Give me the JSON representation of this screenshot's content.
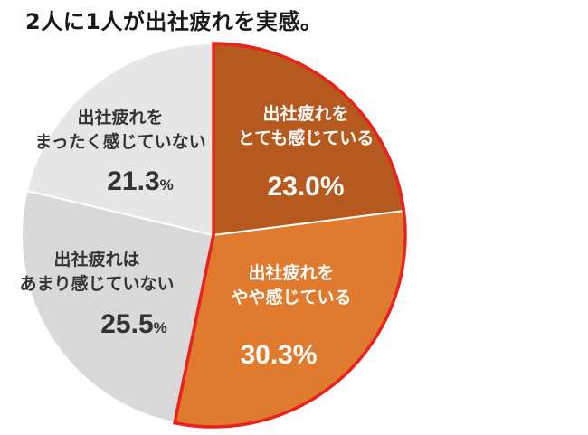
{
  "title": "2人に1人が出社疲れを実感。",
  "chart_data": {
    "type": "pie",
    "title": "2人に1人が出社疲れを実感。",
    "slices": [
      {
        "label_lines": [
          "出社疲れを",
          "とても感じている"
        ],
        "value": 23.0,
        "value_text": "23.0%",
        "color": "#b5591f",
        "text_color": "#ffffff"
      },
      {
        "label_lines": [
          "出社疲れを",
          "やや感じている"
        ],
        "value": 30.3,
        "value_text": "30.3%",
        "color": "#e07a2e",
        "text_color": "#ffffff"
      },
      {
        "label_lines": [
          "出社疲れは",
          "あまり感じていない"
        ],
        "value": 25.5,
        "value_text": "25.5",
        "unit": "%",
        "color": "#d9d9d9",
        "text_color": "#333333"
      },
      {
        "label_lines": [
          "出社疲れを",
          "まったく感じていない"
        ],
        "value": 21.3,
        "value_text": "21.3",
        "unit": "%",
        "color": "#e6e6e6",
        "text_color": "#333333"
      }
    ],
    "highlight": {
      "slices": [
        0,
        1
      ],
      "outline_color": "#e8231e"
    }
  }
}
